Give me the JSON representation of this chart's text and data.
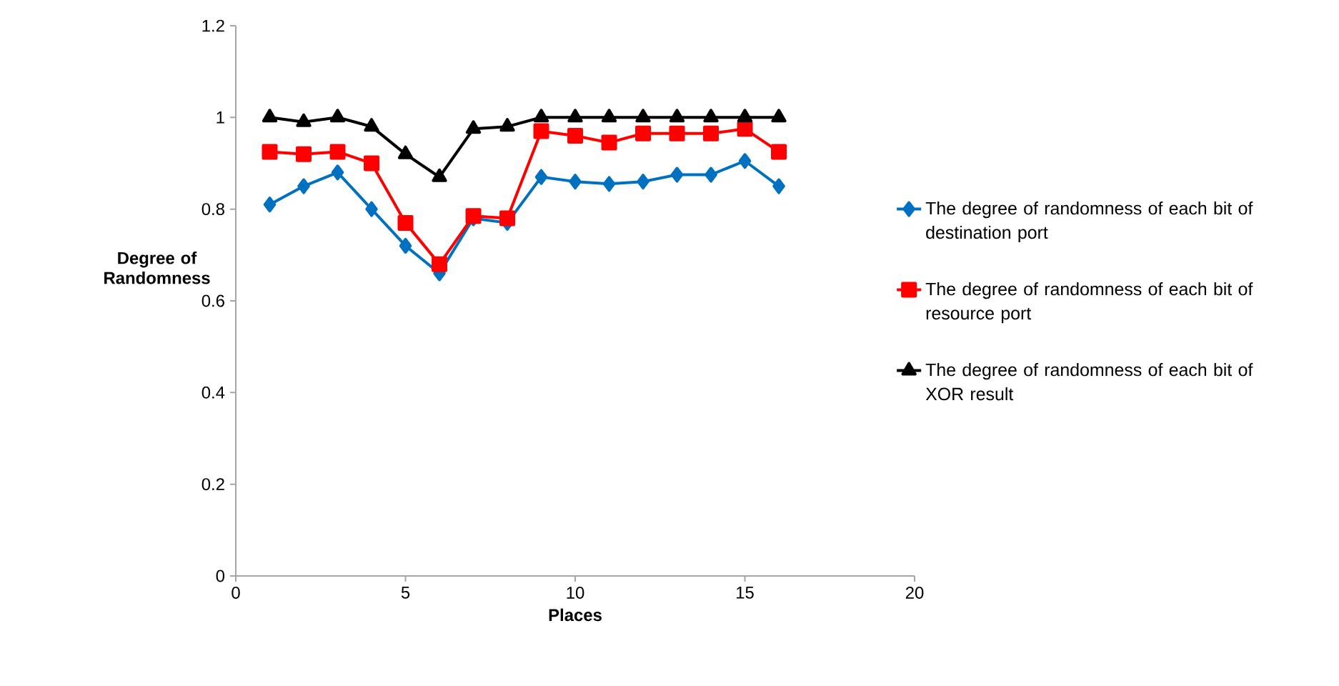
{
  "chart_data": {
    "type": "line",
    "xlabel": "Places",
    "ylabel": "Degree of Randomness",
    "xlim": [
      0,
      20
    ],
    "xticks": [
      0,
      5,
      10,
      15,
      20
    ],
    "ylim": [
      0,
      1.2
    ],
    "yticks": [
      0,
      0.2,
      0.4,
      0.6,
      0.8,
      1,
      1.2
    ],
    "legend": "right",
    "grid": false,
    "line_style": "solid",
    "x": [
      1,
      2,
      3,
      4,
      5,
      6,
      7,
      8,
      9,
      10,
      11,
      12,
      13,
      14,
      15,
      16
    ],
    "series": [
      {
        "name": "The degree of randomness of each bit of destination port",
        "color": "#0070c0",
        "marker": "diamond",
        "values": [
          0.81,
          0.85,
          0.88,
          0.8,
          0.72,
          0.66,
          0.78,
          0.77,
          0.87,
          0.86,
          0.855,
          0.86,
          0.875,
          0.875,
          0.905,
          0.85
        ]
      },
      {
        "name": "The degree of randomness of each bit of resource port",
        "color": "#ff0000",
        "marker": "square",
        "values": [
          0.925,
          0.92,
          0.925,
          0.9,
          0.77,
          0.68,
          0.785,
          0.78,
          0.97,
          0.96,
          0.945,
          0.965,
          0.965,
          0.965,
          0.975,
          0.925
        ]
      },
      {
        "name": "The degree of randomness of each bit of XOR result",
        "color": "#000000",
        "marker": "triangle",
        "values": [
          1.0,
          0.99,
          1.0,
          0.98,
          0.92,
          0.87,
          0.975,
          0.98,
          1.0,
          1.0,
          1.0,
          1.0,
          1.0,
          1.0,
          1.0,
          1.0
        ]
      }
    ]
  }
}
